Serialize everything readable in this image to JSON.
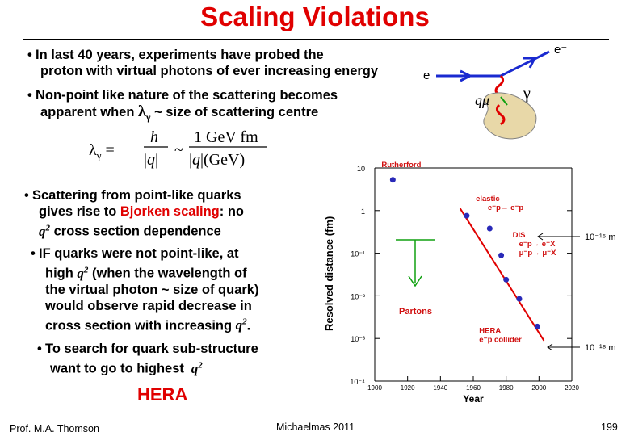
{
  "slide": {
    "title": "Scaling Violations",
    "bullet1_line1": "In last 40 years, experiments have probed the",
    "bullet1_line2": "proton with virtual photons of ever increasing energy",
    "bullet2_line1": "Non-point like nature of the scattering becomes",
    "bullet2_line2a": "apparent when",
    "bullet2_line2b": "~ size of scattering centre",
    "formula": "λγ = h/|q| ~ 1 GeV fm / |q|(GeV)",
    "bullet3_line1": "Scattering from point-like quarks",
    "bullet3_line2a": "gives rise to",
    "bullet3_line2b": "Bjorken scaling",
    "bullet3_line2c": ": no",
    "bullet3_line3": "cross section dependence",
    "bullet4_line1": "IF quarks were not point-like, at",
    "bullet4_line2a": "high",
    "bullet4_line2b": "(when the wavelength of",
    "bullet4_line3": "the virtual photon ~ size of quark)",
    "bullet4_line4": "would observe rapid decrease in",
    "bullet4_line5": "cross section with increasing",
    "bullet5_line1": "To search for quark sub-structure",
    "bullet5_line2": "want to go to highest",
    "hera": "HERA",
    "footer_left": "Prof. M.A. Thomson",
    "footer_center": "Michaelmas 2011",
    "page_number": "199"
  },
  "feynman": {
    "e_in": "e⁻",
    "e_out": "e⁻",
    "q_label": "qμ",
    "gamma_label": "γ"
  },
  "chart_data": {
    "type": "scatter",
    "xlabel": "Year",
    "ylabel": "Resolved distance (fm)",
    "x_ticks": [
      "1900",
      "1920",
      "1940",
      "1960",
      "1980",
      "2000",
      "2020"
    ],
    "y_ticks": [
      "10",
      "1",
      "10⁻¹",
      "10⁻²",
      "10⁻³",
      "10⁻⁴"
    ],
    "y_log_scale": true,
    "xlim": [
      1900,
      2020
    ],
    "ylim_log10": [
      -4,
      1
    ],
    "points": [
      {
        "x": 1911,
        "y_log10": 0.72,
        "label": "Rutherford"
      },
      {
        "x": 1956,
        "y_log10": -0.12,
        "label": "elastic e⁻p→ e⁻p"
      },
      {
        "x": 1970,
        "y_log10": -0.42
      },
      {
        "x": 1977,
        "y_log10": -1.05,
        "label": "DIS e⁻p→ e⁻X μ⁻p→ μ⁻X"
      },
      {
        "x": 1980,
        "y_log10": -1.62
      },
      {
        "x": 1988,
        "y_log10": -2.07
      },
      {
        "x": 1999,
        "y_log10": -2.72,
        "label": "HERA e⁻p collider"
      }
    ],
    "annotations": [
      "10⁻¹⁵ m",
      "10⁻¹⁸ m",
      "Partons"
    ],
    "colors": {
      "points": "#2929b8",
      "labels": "#d01010",
      "trend": "#e00000",
      "partons": "#10a010"
    }
  }
}
